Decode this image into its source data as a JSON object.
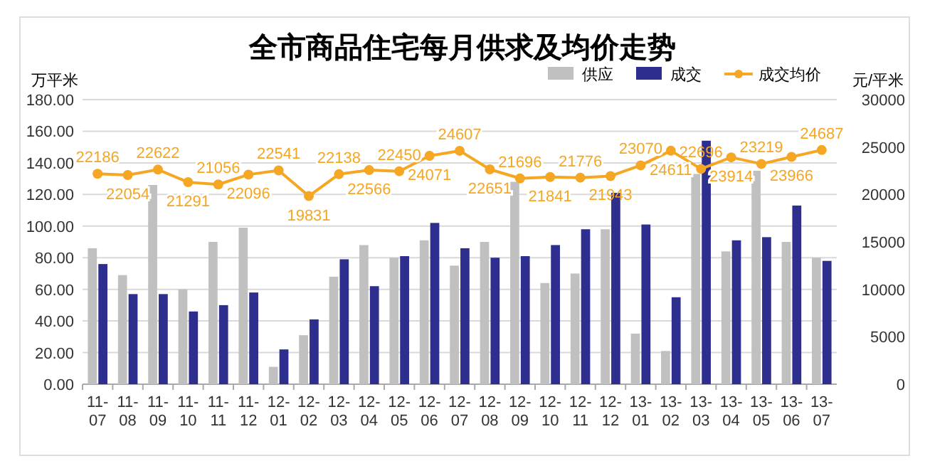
{
  "chart_data": {
    "type": "bar",
    "title": "全市商品住宅每月供求及均价走势",
    "ylabel": "万平米",
    "y2label": "元/平米",
    "categories": [
      "11-07",
      "11-08",
      "11-09",
      "11-10",
      "11-11",
      "11-12",
      "12-01",
      "12-02",
      "12-03",
      "12-04",
      "12-05",
      "12-06",
      "12-07",
      "12-08",
      "12-09",
      "12-10",
      "12-11",
      "12-12",
      "13-01",
      "13-02",
      "13-03",
      "13-04",
      "13-05",
      "13-06",
      "13-07"
    ],
    "series": [
      {
        "name": "供应",
        "color": "#c0c0c0",
        "values": [
          86,
          69,
          126,
          60,
          90,
          99,
          11,
          31,
          68,
          88,
          80,
          91,
          75,
          90,
          128,
          64,
          70,
          98,
          32,
          21,
          133,
          84,
          135,
          90,
          80
        ]
      },
      {
        "name": "成交",
        "color": "#2e2e8f",
        "values": [
          76,
          57,
          57,
          46,
          50,
          58,
          22,
          41,
          79,
          62,
          81,
          102,
          86,
          80,
          81,
          88,
          98,
          121,
          101,
          55,
          154,
          91,
          93,
          113,
          78
        ]
      },
      {
        "name": "成交均价",
        "type": "line",
        "axis": "y2",
        "color": "#f5a623",
        "marker": "circle",
        "values": [
          22186,
          22054,
          22622,
          21291,
          21056,
          22096,
          22541,
          19831,
          22138,
          22566,
          22450,
          24071,
          24607,
          22651,
          21696,
          21841,
          21776,
          21943,
          23070,
          24611,
          22696,
          23914,
          23219,
          23966,
          24687
        ],
        "value_labels": [
          "22186",
          "22054",
          "22622",
          "21291",
          "21056",
          "22096",
          "22541",
          "19831",
          "22138",
          "22566",
          "22450",
          "24071",
          "24607",
          "22651",
          "21696",
          "21841",
          "21776",
          "21943",
          "23070",
          "24611",
          "22696",
          "23914",
          "23219",
          "23966",
          "24687"
        ]
      }
    ],
    "ylim": [
      0,
      180
    ],
    "yticks": [
      {
        "value": 0,
        "label": "0.00"
      },
      {
        "value": 20,
        "label": "20.00"
      },
      {
        "value": 40,
        "label": "40.00"
      },
      {
        "value": 60,
        "label": "60.00"
      },
      {
        "value": 80,
        "label": "80.00"
      },
      {
        "value": 100,
        "label": "100.00"
      },
      {
        "value": 120,
        "label": "120.00"
      },
      {
        "value": 140,
        "label": "140.00"
      },
      {
        "value": 160,
        "label": "160.00"
      },
      {
        "value": 180,
        "label": "180.00"
      }
    ],
    "y2lim": [
      0,
      30000
    ],
    "y2ticks": [
      0,
      5000,
      10000,
      15000,
      20000,
      25000,
      30000
    ],
    "grid": "y",
    "legend": "top right"
  }
}
